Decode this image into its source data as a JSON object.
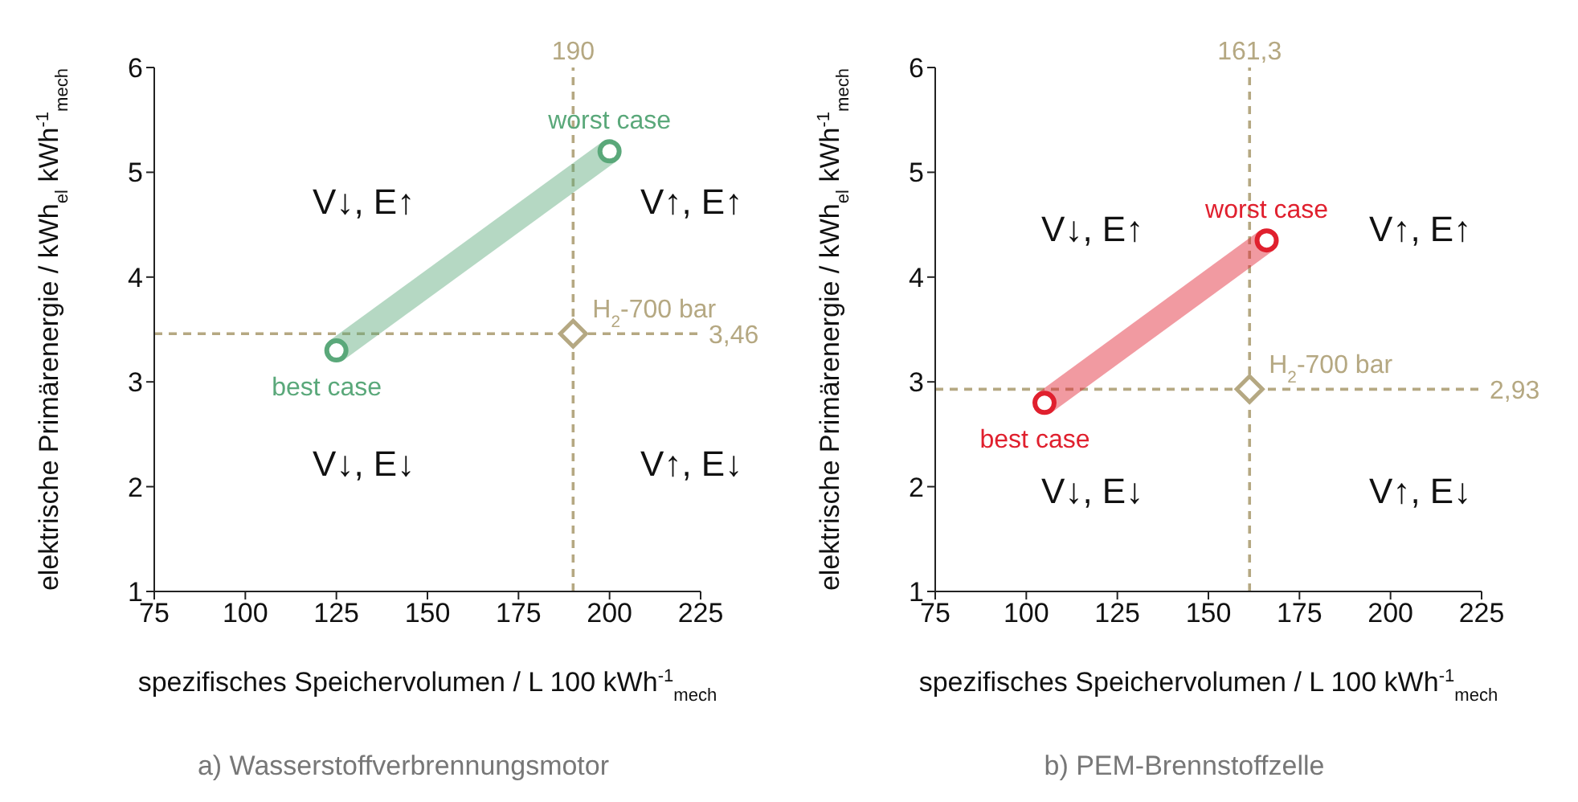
{
  "chart_data": [
    {
      "type": "line",
      "title": "a) Wasserstoffverbrennungsmotor",
      "xlabel": "spezifisches Speichervolumen / L 100 kWh$^{-1}$$_{mech}$",
      "ylabel": "elektrische Primärenergie / kWh$_{el}$ kWh$^{-1}$$_{mech}$",
      "xlim": [
        75,
        225
      ],
      "xticks": [
        75,
        100,
        125,
        150,
        175,
        200,
        225
      ],
      "ylim": [
        1,
        6
      ],
      "yticks": [
        1,
        2,
        3,
        4,
        5,
        6
      ],
      "series": [
        {
          "color": "#5aa87a",
          "x": [
            125,
            200
          ],
          "values": [
            3.3,
            5.2
          ],
          "marker": "circle"
        },
        {
          "type": "scatter",
          "color": "#b5a882",
          "x": [
            190
          ],
          "values": [
            3.46
          ],
          "marker": "diamond"
        }
      ],
      "ref_lines": [
        {
          "axis": "x",
          "value": 190,
          "label": "190",
          "color": "#b5a882",
          "line_style": "dashed"
        },
        {
          "axis": "y",
          "value": 3.46,
          "label": "3,46",
          "color": "#b5a882",
          "line_style": "dashed"
        }
      ],
      "annotations": [
        {
          "text": "best case",
          "x": 125,
          "y": 3.3
        },
        {
          "text": "worst case",
          "x": 200,
          "y": 5.2
        },
        {
          "text": "H$_{2}$-700 bar",
          "x": 190,
          "y": 3.46
        },
        "V↓, E↑",
        "V↑, E↑",
        "V↓, E↓",
        "V↑, E↓"
      ]
    },
    {
      "type": "line",
      "title": "b) PEM-Brennstoffzelle",
      "xlabel": "spezifisches Speichervolumen / L 100 kWh$^{-1}$$_{mech}$",
      "ylabel": "elektrische Primärenergie / kWh$_{el}$ kWh$^{-1}$$_{mech}$",
      "xlim": [
        75,
        225
      ],
      "xticks": [
        75,
        100,
        125,
        150,
        175,
        200,
        225
      ],
      "ylim": [
        1,
        6
      ],
      "yticks": [
        1,
        2,
        3,
        4,
        5,
        6
      ],
      "series": [
        {
          "color": "#e0202e",
          "x": [
            105,
            166
          ],
          "values": [
            2.8,
            4.35
          ],
          "marker": "circle"
        },
        {
          "type": "scatter",
          "color": "#b5a882",
          "x": [
            161.3
          ],
          "values": [
            2.93
          ],
          "marker": "diamond"
        }
      ],
      "ref_lines": [
        {
          "axis": "x",
          "value": 161.3,
          "label": "161,3",
          "color": "#b5a882",
          "line_style": "dashed"
        },
        {
          "axis": "y",
          "value": 2.93,
          "label": "2,93",
          "color": "#b5a882",
          "line_style": "dashed"
        }
      ],
      "annotations": [
        {
          "text": "best case",
          "x": 105,
          "y": 2.8
        },
        {
          "text": "worst case",
          "x": 166,
          "y": 4.35
        },
        {
          "text": "H$_{2}$-700 bar",
          "x": 161.3,
          "y": 2.93
        },
        "V↓, E↑",
        "V↑, E↑",
        "V↓, E↓",
        "V↑, E↓"
      ]
    }
  ]
}
